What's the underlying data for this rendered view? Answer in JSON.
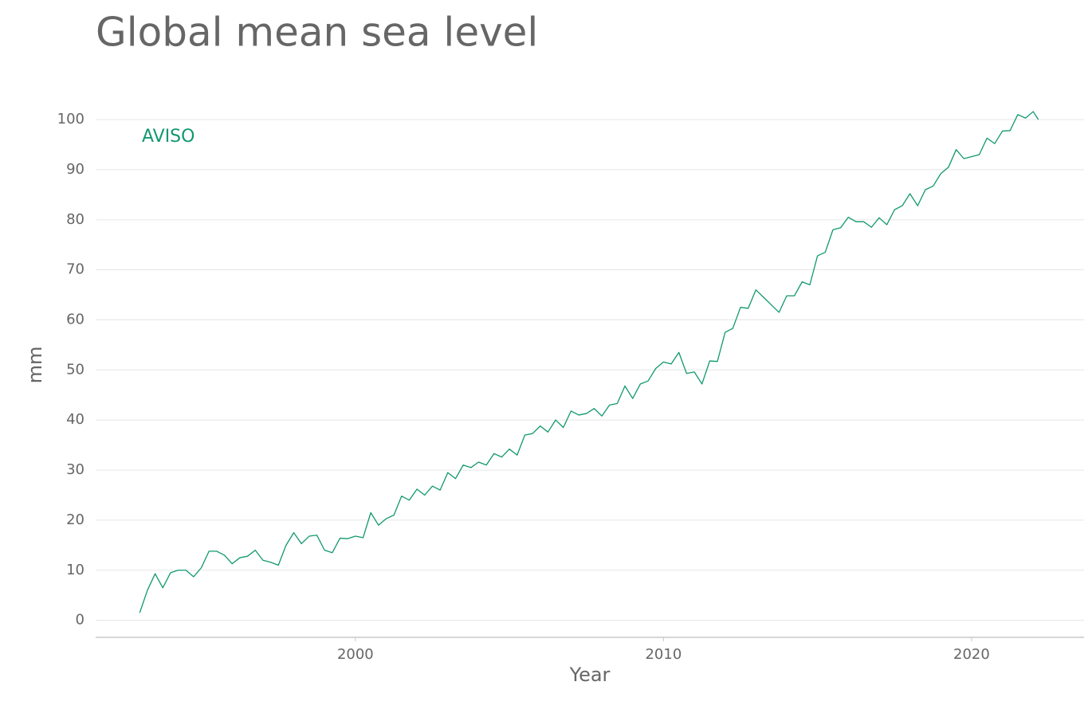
{
  "chart_data": {
    "type": "line",
    "title": "Global mean sea level",
    "x_label": "Year",
    "y_label": "mm",
    "x": [
      1993.0,
      1993.25,
      1993.5,
      1993.75,
      1994.0,
      1994.25,
      1994.5,
      1994.75,
      1995.0,
      1995.25,
      1995.5,
      1995.75,
      1996.0,
      1996.25,
      1996.5,
      1996.75,
      1997.0,
      1997.25,
      1997.5,
      1997.75,
      1998.0,
      1998.25,
      1998.5,
      1998.75,
      1999.0,
      1999.25,
      1999.5,
      1999.75,
      2000.0,
      2000.25,
      2000.5,
      2000.75,
      2001.0,
      2001.25,
      2001.5,
      2001.75,
      2002.0,
      2002.25,
      2002.5,
      2002.75,
      2003.0,
      2003.25,
      2003.5,
      2003.75,
      2004.0,
      2004.25,
      2004.5,
      2004.75,
      2005.0,
      2005.25,
      2005.5,
      2005.75,
      2006.0,
      2006.25,
      2006.5,
      2006.75,
      2007.0,
      2007.25,
      2007.5,
      2007.75,
      2008.0,
      2008.25,
      2008.5,
      2008.75,
      2009.0,
      2009.25,
      2009.5,
      2009.75,
      2010.0,
      2010.25,
      2010.5,
      2010.75,
      2011.0,
      2011.25,
      2011.5,
      2011.75,
      2012.0,
      2012.25,
      2012.5,
      2012.75,
      2013.0,
      2013.25,
      2013.5,
      2013.75,
      2014.0,
      2014.25,
      2014.5,
      2014.75,
      2015.0,
      2015.25,
      2015.5,
      2015.75,
      2016.0,
      2016.25,
      2016.5,
      2016.75,
      2017.0,
      2017.25,
      2017.5,
      2017.75,
      2018.0,
      2018.25,
      2018.5,
      2018.75,
      2019.0,
      2019.25,
      2019.5,
      2019.75,
      2020.0,
      2020.25,
      2020.5,
      2020.75,
      2021.0,
      2021.25,
      2021.5,
      2021.75,
      2022.0,
      2022.17
    ],
    "series": [
      {
        "name": "AVISO",
        "color": "#11986f",
        "values": [
          1.5,
          6,
          9.3,
          6.5,
          9.5,
          10,
          10,
          8.7,
          10.5,
          13.8,
          13.8,
          13,
          11.3,
          12.5,
          12.8,
          14,
          12,
          11.6,
          11,
          15,
          17.5,
          15.3,
          16.8,
          17,
          14,
          13.5,
          16.4,
          16.3,
          16.8,
          16.5,
          21.5,
          19,
          20.3,
          21,
          24.8,
          24,
          26.2,
          25,
          26.8,
          26,
          29.5,
          28.3,
          31,
          30.5,
          31.6,
          31,
          33.3,
          32.6,
          34.2,
          33,
          37,
          37.3,
          38.8,
          37.6,
          40,
          38.5,
          41.8,
          41,
          41.3,
          42.3,
          40.8,
          43,
          43.3,
          46.8,
          44.3,
          47.2,
          47.8,
          50.3,
          51.6,
          51.2,
          53.5,
          49.3,
          49.6,
          47.2,
          51.8,
          51.7,
          57.5,
          58.3,
          62.5,
          62.3,
          66,
          64.5,
          63,
          61.5,
          64.8,
          64.8,
          67.6,
          67,
          72.8,
          73.5,
          78,
          78.4,
          80.5,
          79.6,
          79.6,
          78.5,
          80.4,
          79,
          82,
          82.8,
          85.2,
          82.8,
          86,
          86.7,
          89.2,
          90.5,
          94,
          92.2,
          92.6,
          93,
          96.3,
          95.2,
          97.7,
          97.8,
          101,
          100.3,
          101.6,
          100
        ]
      }
    ],
    "xlim": [
      1991.57,
      2023.65
    ],
    "xticks": [
      2000,
      2010,
      2020
    ],
    "ylim": [
      -3.4,
      103.2
    ],
    "yticks": [
      0,
      10,
      20,
      30,
      40,
      50,
      60,
      70,
      80,
      90,
      100
    ],
    "grid": true
  }
}
